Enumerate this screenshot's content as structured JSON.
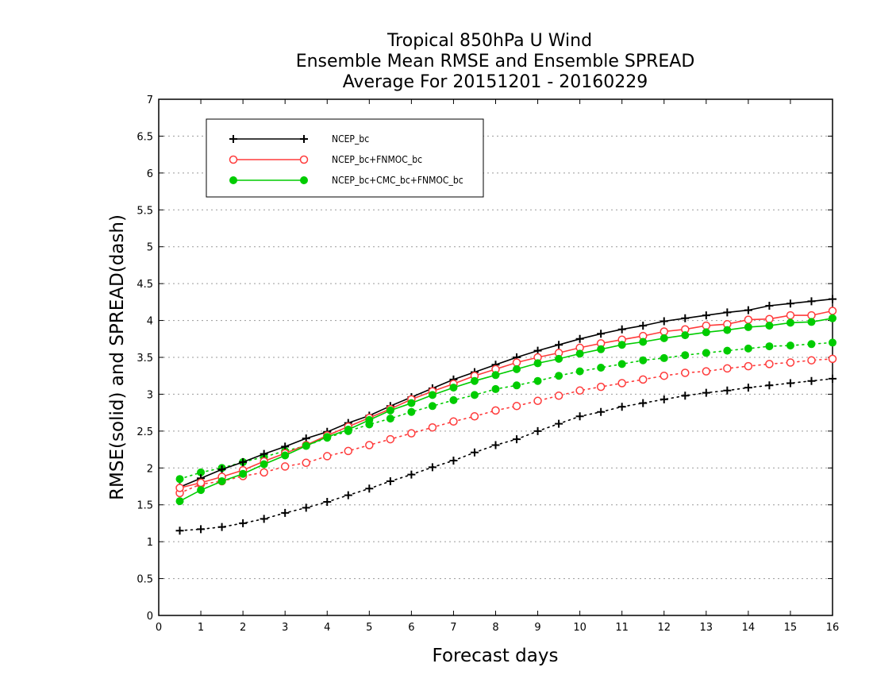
{
  "chart_data": {
    "type": "line",
    "title": [
      "Tropical 850hPa U Wind",
      "Ensemble Mean RMSE and Ensemble SPREAD",
      "Average For 20151201 - 20160229"
    ],
    "xlabel": "Forecast days",
    "ylabel": "RMSE(solid) and SPREAD(dash)",
    "xlim": [
      0,
      16
    ],
    "ylim": [
      0,
      7
    ],
    "x_ticks": [
      "0",
      "1",
      "2",
      "3",
      "4",
      "5",
      "6",
      "7",
      "8",
      "9",
      "10",
      "11",
      "12",
      "13",
      "14",
      "15",
      "16"
    ],
    "y_ticks": [
      "0",
      "0.5",
      "1",
      "1.5",
      "2",
      "2.5",
      "3",
      "3.5",
      "4",
      "4.5",
      "5",
      "5.5",
      "6",
      "6.5",
      "7"
    ],
    "grid": true,
    "legend_position": "top-left",
    "x": [
      0.5,
      1,
      1.5,
      2,
      2.5,
      3,
      3.5,
      4,
      4.5,
      5,
      5.5,
      6,
      6.5,
      7,
      7.5,
      8,
      8.5,
      9,
      9.5,
      10,
      10.5,
      11,
      11.5,
      12,
      12.5,
      13,
      13.5,
      14,
      14.5,
      15,
      15.5,
      16
    ],
    "series": [
      {
        "name": "NCEP_bc",
        "color": "#000000",
        "marker": "plus",
        "rmse": [
          1.74,
          1.86,
          1.98,
          2.08,
          2.19,
          2.29,
          2.4,
          2.49,
          2.61,
          2.71,
          2.84,
          2.96,
          3.08,
          3.2,
          3.3,
          3.4,
          3.5,
          3.59,
          3.67,
          3.75,
          3.82,
          3.88,
          3.93,
          3.99,
          4.03,
          4.07,
          4.11,
          4.14,
          4.2,
          4.23,
          4.26,
          4.29
        ],
        "spread": [
          1.15,
          1.17,
          1.2,
          1.25,
          1.31,
          1.39,
          1.46,
          1.54,
          1.63,
          1.72,
          1.82,
          1.91,
          2.01,
          2.1,
          2.21,
          2.31,
          2.39,
          2.5,
          2.6,
          2.7,
          2.76,
          2.83,
          2.88,
          2.93,
          2.98,
          3.02,
          3.05,
          3.09,
          3.12,
          3.15,
          3.18,
          3.21
        ]
      },
      {
        "name": "NCEP_bc+FNMOC_bc",
        "color": "#ff3b3b",
        "marker": "open-circle",
        "rmse": [
          1.73,
          1.8,
          1.88,
          1.97,
          2.09,
          2.2,
          2.31,
          2.44,
          2.56,
          2.68,
          2.8,
          2.93,
          3.04,
          3.14,
          3.25,
          3.34,
          3.43,
          3.5,
          3.56,
          3.63,
          3.69,
          3.74,
          3.79,
          3.85,
          3.88,
          3.93,
          3.95,
          4.01,
          4.02,
          4.07,
          4.07,
          4.13
        ],
        "spread": [
          1.66,
          1.78,
          1.82,
          1.89,
          1.94,
          2.02,
          2.07,
          2.16,
          2.23,
          2.31,
          2.39,
          2.47,
          2.55,
          2.63,
          2.7,
          2.78,
          2.84,
          2.91,
          2.98,
          3.05,
          3.1,
          3.15,
          3.2,
          3.25,
          3.29,
          3.31,
          3.35,
          3.38,
          3.41,
          3.43,
          3.46,
          3.48
        ]
      },
      {
        "name": "NCEP_bc+CMC_bc+FNMOC_bc",
        "color": "#00cc00",
        "marker": "filled-circle",
        "rmse": [
          1.55,
          1.7,
          1.82,
          1.92,
          2.05,
          2.17,
          2.3,
          2.42,
          2.52,
          2.65,
          2.78,
          2.88,
          2.99,
          3.09,
          3.18,
          3.26,
          3.34,
          3.42,
          3.48,
          3.55,
          3.61,
          3.67,
          3.71,
          3.76,
          3.8,
          3.84,
          3.87,
          3.91,
          3.93,
          3.97,
          3.98,
          4.03
        ],
        "spread": [
          1.85,
          1.94,
          2.0,
          2.08,
          2.15,
          2.23,
          2.3,
          2.41,
          2.5,
          2.59,
          2.67,
          2.76,
          2.84,
          2.92,
          2.99,
          3.07,
          3.12,
          3.18,
          3.25,
          3.31,
          3.36,
          3.41,
          3.46,
          3.49,
          3.53,
          3.56,
          3.59,
          3.62,
          3.65,
          3.66,
          3.68,
          3.7
        ]
      }
    ]
  }
}
